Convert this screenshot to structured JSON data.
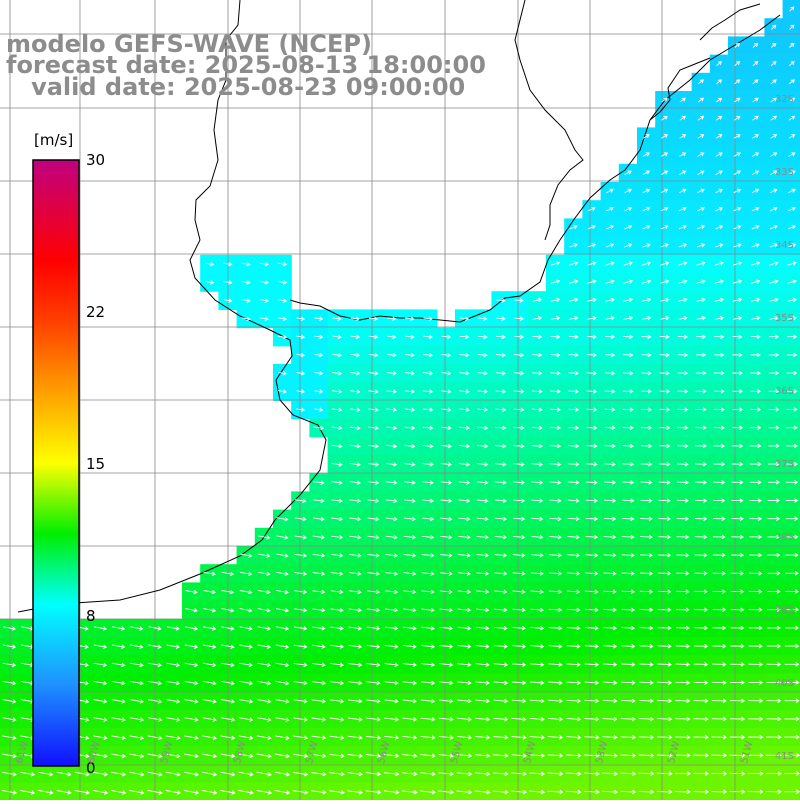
{
  "header": {
    "line1": "modelo GEFS-WAVE (NCEP)",
    "line2": "forecast date: 2025-08-13 18:00:00",
    "line3": "   valid date: 2025-08-23 09:00:00"
  },
  "colorbar": {
    "unit": "[m/s]",
    "ticks": [
      "30",
      "22",
      "15",
      "8",
      "0"
    ],
    "tick_values": [
      30,
      22,
      15,
      8,
      0
    ],
    "stops": [
      {
        "v": 0,
        "c": "#1010ff"
      },
      {
        "v": 4,
        "c": "#1e90ff"
      },
      {
        "v": 8,
        "c": "#00ffff"
      },
      {
        "v": 11.5,
        "c": "#00ee00"
      },
      {
        "v": 15,
        "c": "#ffff00"
      },
      {
        "v": 22,
        "c": "#ff4000"
      },
      {
        "v": 25,
        "c": "#ff0000"
      },
      {
        "v": 30,
        "c": "#c00080"
      }
    ]
  },
  "map": {
    "lat_labels": [
      "32S",
      "33S",
      "34S",
      "35S",
      "36S",
      "37S",
      "38S",
      "39S",
      "40S",
      "41S"
    ],
    "lon_labels": [
      "61W",
      "60W",
      "59W",
      "58W",
      "57W",
      "56W",
      "55W",
      "54W",
      "53W",
      "52W",
      "51W"
    ],
    "wind_direction": "arrows point toward the east (northeast near the Brazilian coast)"
  }
}
